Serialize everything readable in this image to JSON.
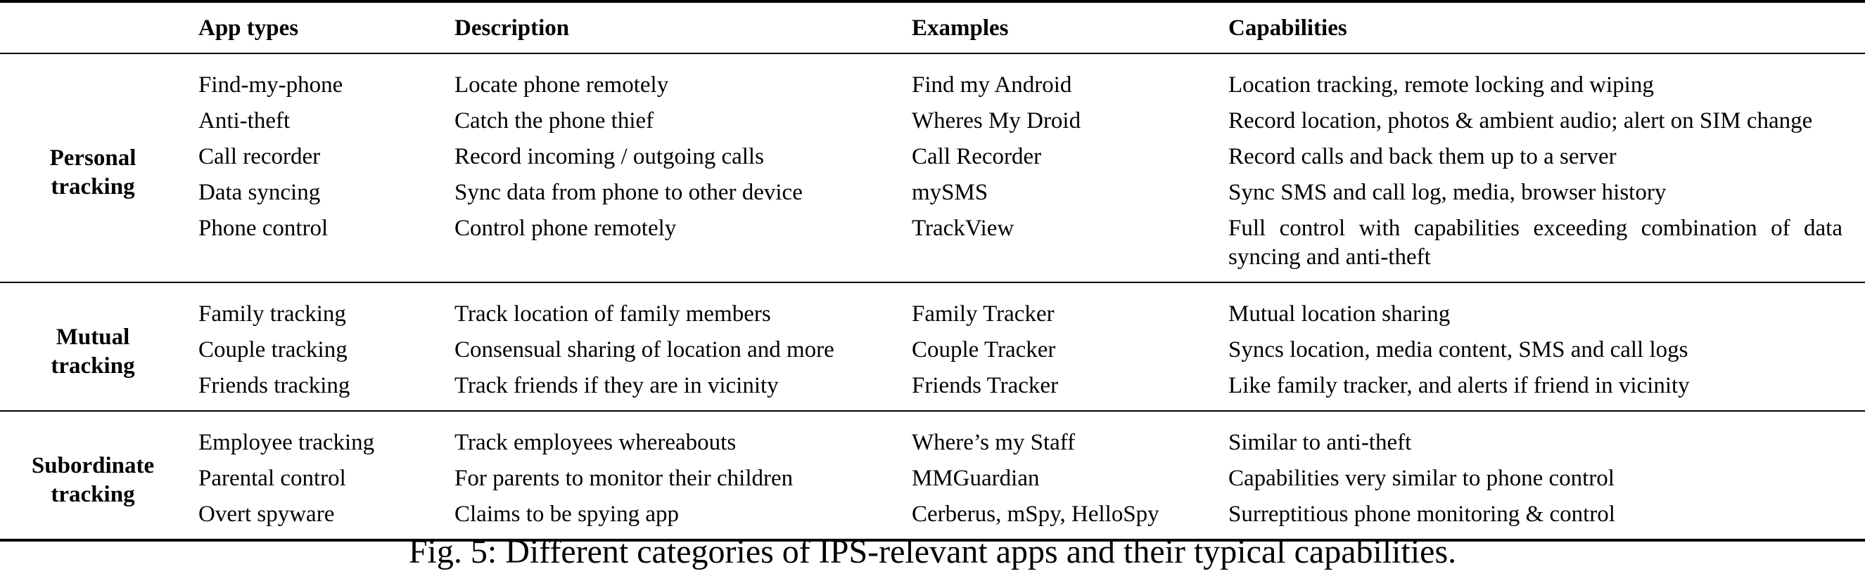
{
  "table": {
    "headers": [
      "",
      "App types",
      "Description",
      "Examples",
      "Capabilities"
    ],
    "groups": [
      {
        "name_line1": "Personal",
        "name_line2": "tracking",
        "rows": [
          {
            "type": "Find-my-phone",
            "description": "Locate phone remotely",
            "examples": "Find my Android",
            "capabilities": "Location tracking, remote locking and wiping"
          },
          {
            "type": "Anti-theft",
            "description": "Catch the phone thief",
            "examples": "Wheres My Droid",
            "capabilities": "Record location, photos & ambient audio; alert on SIM change"
          },
          {
            "type": "Call recorder",
            "description": "Record incoming / outgoing calls",
            "examples": "Call Recorder",
            "capabilities": "Record calls and back them up to a server"
          },
          {
            "type": "Data syncing",
            "description": "Sync data from phone to other device",
            "examples": "mySMS",
            "capabilities": "Sync SMS and call log, media, browser history"
          },
          {
            "type": "Phone control",
            "description": "Control phone remotely",
            "examples": "TrackView",
            "capabilities": "Full control with capabilities exceeding combination of data syncing and anti-theft"
          }
        ]
      },
      {
        "name_line1": "Mutual",
        "name_line2": "tracking",
        "rows": [
          {
            "type": "Family tracking",
            "description": "Track location of family members",
            "examples": "Family Tracker",
            "capabilities": "Mutual location sharing"
          },
          {
            "type": "Couple tracking",
            "description": "Consensual sharing of location and more",
            "examples": "Couple Tracker",
            "capabilities": "Syncs location, media content, SMS and call logs"
          },
          {
            "type": "Friends tracking",
            "description": "Track friends if they are in vicinity",
            "examples": "Friends Tracker",
            "capabilities": "Like family tracker, and alerts if friend in vicinity"
          }
        ]
      },
      {
        "name_line1": "Subordinate",
        "name_line2": "tracking",
        "rows": [
          {
            "type": "Employee tracking",
            "description": "Track employees whereabouts",
            "examples": "Where’s my Staff",
            "capabilities": "Similar to anti-theft"
          },
          {
            "type": "Parental control",
            "description": "For parents to monitor their children",
            "examples": "MMGuardian",
            "capabilities": "Capabilities very similar to phone control"
          },
          {
            "type": "Overt spyware",
            "description": "Claims to be spying app",
            "examples": "Cerberus, mSpy, HelloSpy",
            "capabilities": "Surreptitious phone monitoring & control"
          }
        ]
      }
    ]
  },
  "caption": "Fig. 5: Different categories of IPS-relevant apps and their typical capabilities."
}
